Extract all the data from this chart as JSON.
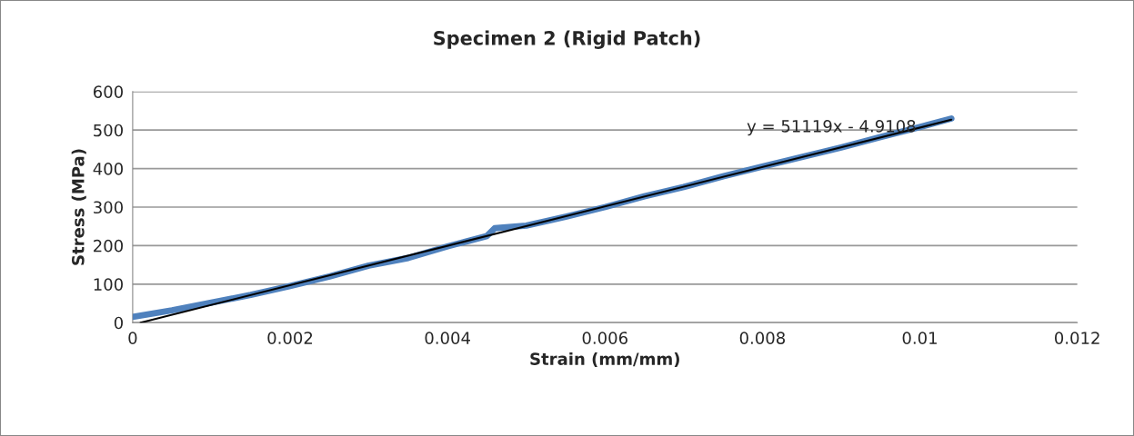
{
  "chart_data": {
    "type": "line",
    "title": "Specimen 2 (Rigid Patch)",
    "xlabel": "Strain (mm/mm)",
    "ylabel": "Stress (MPa)",
    "series": [
      {
        "color": "#4f81bd",
        "x": [
          0,
          0.0005,
          0.001,
          0.0015,
          0.002,
          0.0025,
          0.003,
          0.0035,
          0.004,
          0.0045,
          0.0046,
          0.005,
          0.0055,
          0.006,
          0.0065,
          0.007,
          0.0075,
          0.008,
          0.0085,
          0.009,
          0.0095,
          0.01,
          0.0104
        ],
        "values": [
          15,
          32,
          52,
          72,
          95,
          120,
          148,
          168,
          198,
          225,
          245,
          252,
          275,
          300,
          328,
          352,
          380,
          405,
          430,
          455,
          482,
          508,
          530
        ]
      },
      {
        "type": "line",
        "color": "#000000",
        "x": [
          0.0001,
          0.0104
        ],
        "values": [
          0,
          527
        ]
      }
    ],
    "xlim": [
      0,
      0.012
    ],
    "xticks": [
      {
        "value": 0,
        "label": "0"
      },
      0.002,
      0.004,
      0.006,
      0.008,
      0.01,
      0.012
    ],
    "ylim": [
      0,
      600
    ],
    "yticks": [
      0,
      100,
      200,
      300,
      400,
      500,
      600
    ],
    "grid": "y",
    "legend": false,
    "annotations": [
      "y = 51119x - 4.9108"
    ]
  }
}
